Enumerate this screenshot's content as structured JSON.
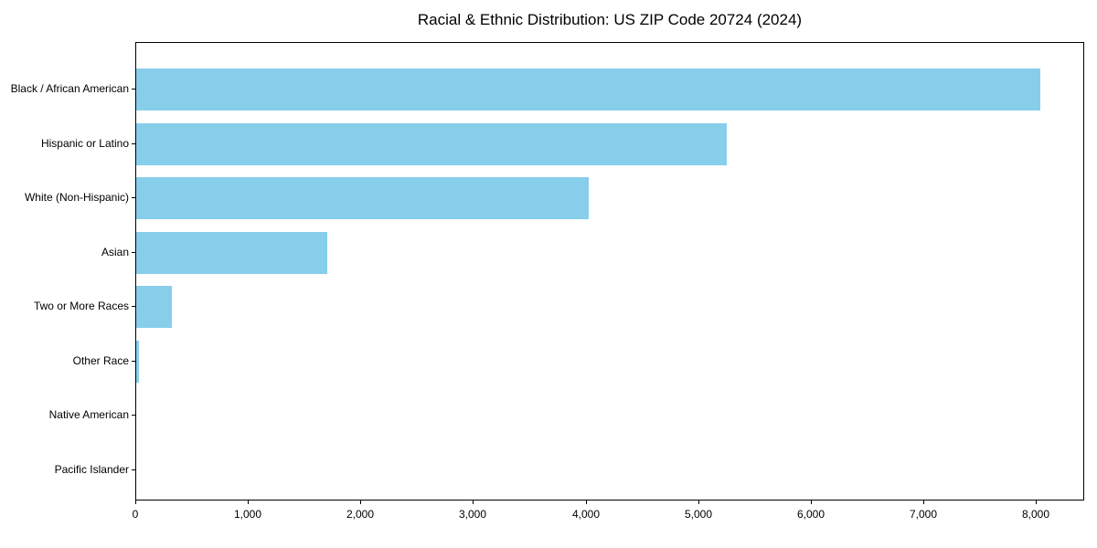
{
  "chart_data": {
    "type": "bar",
    "orientation": "horizontal",
    "title": "Racial & Ethnic Distribution: US ZIP Code 20724 (2024)",
    "categories": [
      "Black / African American",
      "Hispanic or Latino",
      "White (Non-Hispanic)",
      "Asian",
      "Two or More Races",
      "Other Race",
      "Native American",
      "Pacific Islander"
    ],
    "values": [
      8030,
      5250,
      4020,
      1700,
      320,
      25,
      0,
      0
    ],
    "xlabel": "",
    "ylabel": "",
    "xlim": [
      0,
      8430
    ],
    "x_ticks": [
      0,
      1000,
      2000,
      3000,
      4000,
      5000,
      6000,
      7000,
      8000
    ],
    "x_tick_labels": [
      "0",
      "1,000",
      "2,000",
      "3,000",
      "4,000",
      "5,000",
      "6,000",
      "7,000",
      "8,000"
    ],
    "bar_color": "#87CEEB",
    "axis_color": "#000000",
    "background_color": "#ffffff",
    "grid": false,
    "legend": null
  }
}
